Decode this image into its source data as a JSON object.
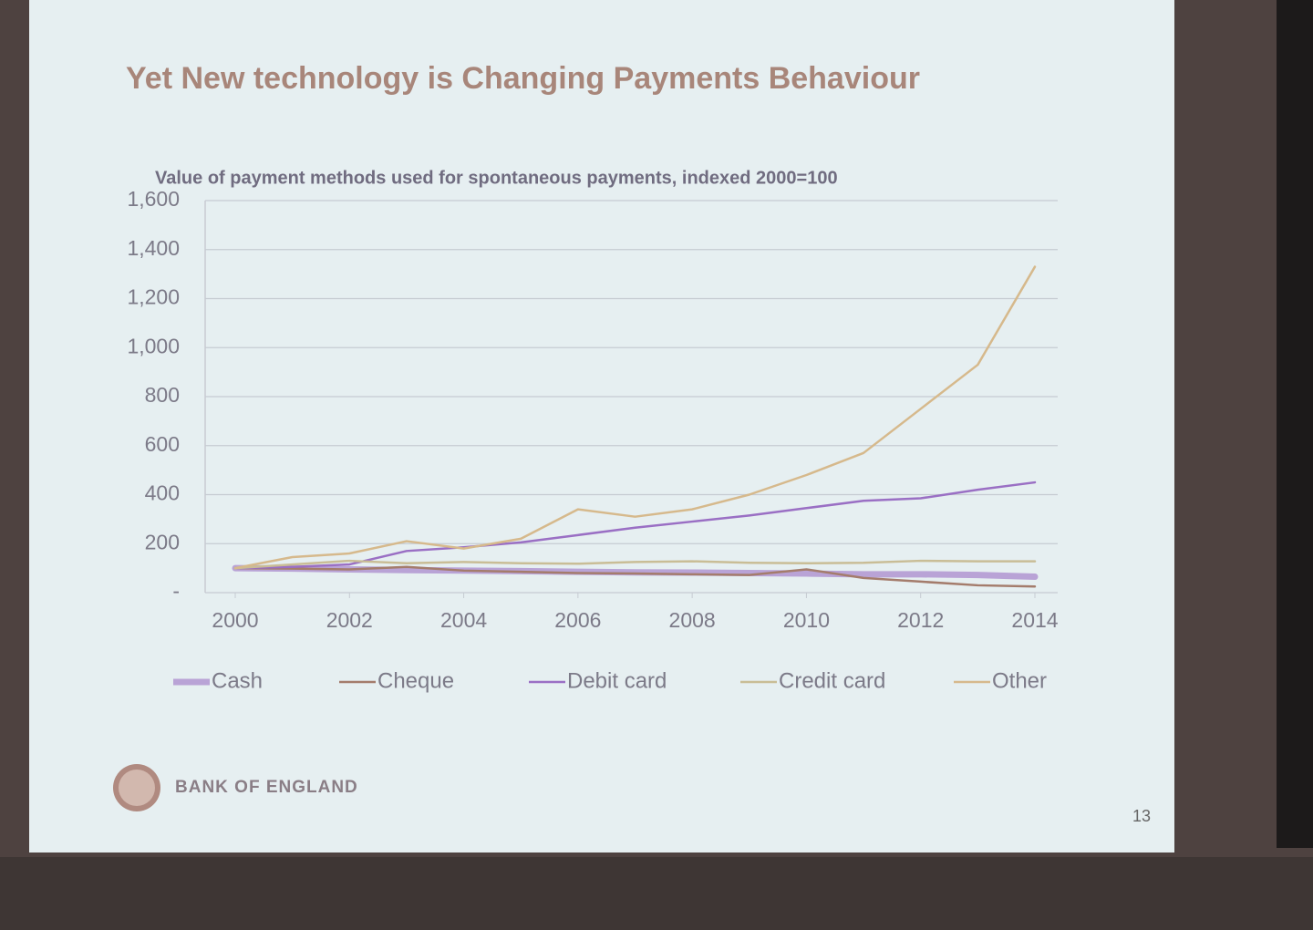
{
  "slide": {
    "title": "Yet New technology is Changing Payments Behaviour",
    "footer": "BANK OF ENGLAND",
    "page_number": "13"
  },
  "chart_data": {
    "type": "line",
    "title": "Value of payment methods used for spontaneous payments, indexed 2000=100",
    "x": [
      2000,
      2001,
      2002,
      2003,
      2004,
      2005,
      2006,
      2007,
      2008,
      2009,
      2010,
      2011,
      2012,
      2013,
      2014
    ],
    "xlim": [
      2000,
      2014
    ],
    "xticks": [
      2000,
      2002,
      2004,
      2006,
      2008,
      2010,
      2012,
      2014
    ],
    "ylim": [
      0,
      1600
    ],
    "yticks": [
      {
        "value": 0,
        "label": "-"
      },
      200,
      400,
      600,
      800,
      {
        "value": 1000,
        "label": "1,000"
      },
      {
        "value": 1200,
        "label": "1,200"
      },
      {
        "value": 1400,
        "label": "1,400"
      },
      {
        "value": 1600,
        "label": "1,600"
      }
    ],
    "grid": true,
    "legend": "bottom",
    "series": [
      {
        "name": "Cash",
        "color": "#b9a3d6",
        "line_width": 7,
        "values": [
          100,
          98,
          95,
          92,
          90,
          88,
          85,
          83,
          82,
          80,
          78,
          75,
          75,
          72,
          65
        ]
      },
      {
        "name": "Cheque",
        "color": "#a47c6c",
        "line_width": 2.5,
        "values": [
          100,
          98,
          95,
          105,
          90,
          85,
          80,
          78,
          75,
          72,
          95,
          60,
          45,
          30,
          25
        ]
      },
      {
        "name": "Debit card",
        "color": "#9a6fc4",
        "line_width": 2.5,
        "values": [
          100,
          105,
          115,
          170,
          185,
          205,
          235,
          265,
          290,
          315,
          345,
          375,
          385,
          420,
          450
        ]
      },
      {
        "name": "Credit card",
        "color": "#c9bd96",
        "line_width": 2.5,
        "values": [
          100,
          115,
          130,
          120,
          125,
          120,
          118,
          125,
          128,
          122,
          120,
          122,
          130,
          128,
          128
        ]
      },
      {
        "name": "Other",
        "color": "#d6b98c",
        "line_width": 2.5,
        "values": [
          100,
          145,
          160,
          210,
          180,
          220,
          340,
          310,
          340,
          400,
          480,
          570,
          750,
          930,
          1330
        ]
      }
    ]
  }
}
